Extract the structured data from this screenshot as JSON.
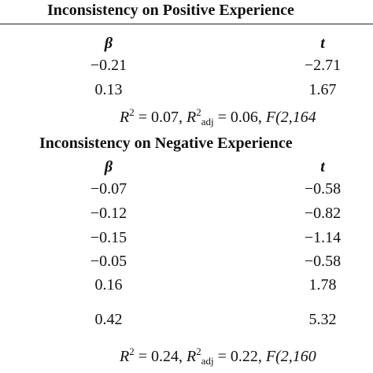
{
  "sections": [
    {
      "title": "Inconsistency on Positive Experience",
      "headers": [
        "β",
        "t"
      ],
      "rows": [
        [
          "−0.21",
          "−2.71"
        ],
        [
          "0.13",
          "1.67"
        ]
      ],
      "stats": [
        "R",
        "2",
        " = 0.07, ",
        "R",
        "2",
        "adj",
        " = 0.06, ",
        "F(2,164"
      ]
    },
    {
      "title": "Inconsistency on Negative Experience",
      "headers": [
        "β",
        "t"
      ],
      "rows": [
        [
          "−0.07",
          "−0.58"
        ],
        [
          "−0.12",
          "−0.82"
        ],
        [
          "−0.15",
          "−1.14"
        ],
        [
          "−0.05",
          "−0.58"
        ],
        [
          "0.16",
          "1.78"
        ],
        [
          "0.42",
          "5.32"
        ]
      ],
      "stats": [
        "R",
        "2",
        " = 0.24, ",
        "R",
        "2",
        "adj",
        " = 0.22, ",
        "F(2,160"
      ]
    }
  ]
}
